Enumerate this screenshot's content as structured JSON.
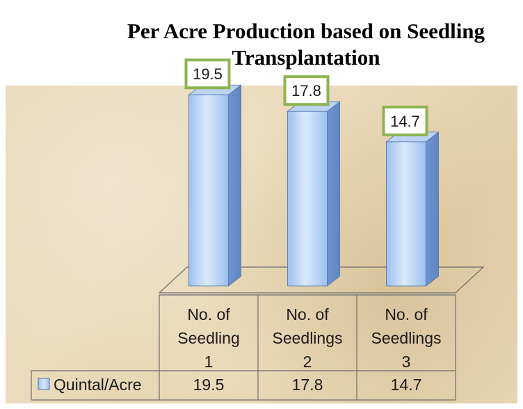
{
  "chart_data": {
    "type": "bar",
    "title": "Per Acre Production based on Seedling Transplantation",
    "categories": [
      [
        "No. of",
        "Seedling",
        "1"
      ],
      [
        "No. of",
        "Seedlings",
        "2"
      ],
      [
        "No. of",
        "Seedlings",
        "3"
      ]
    ],
    "series": [
      {
        "name": "Quintal/Acre",
        "values": [
          19.5,
          17.8,
          14.7
        ]
      }
    ],
    "data_labels": [
      "19.5",
      "17.8",
      "14.7"
    ],
    "table_values": [
      "19.5",
      "17.8",
      "14.7"
    ],
    "ylim": [
      0,
      22
    ],
    "grid": false,
    "legend": "data-table-left",
    "colors": {
      "bar_light": "#dce9fb",
      "bar_mid": "#9cc0ee",
      "bar_dark": "#6f95cf",
      "bar_side": "#5f86c2",
      "bar_top": "#bcd3f3",
      "label_border": "#8db451",
      "table_line": "#6d6d6d",
      "floor_line": "#6d6d6d"
    }
  }
}
